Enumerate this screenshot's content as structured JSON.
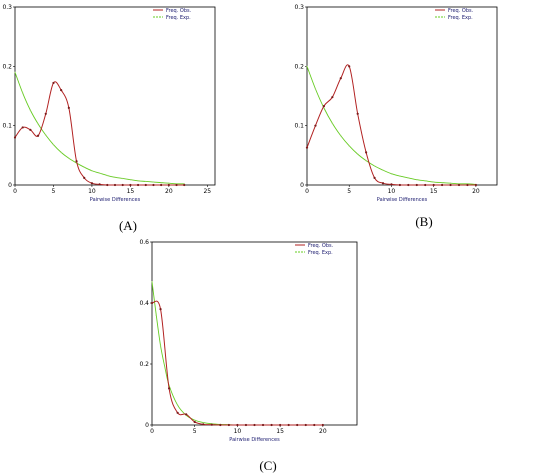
{
  "chart_data": [
    {
      "type": "line",
      "panel_label": "(A)",
      "xlabel": "Pairwise Differences",
      "ylabel": "",
      "xlim": [
        0,
        26
      ],
      "ylim": [
        0,
        0.3
      ],
      "x_ticks": [
        0,
        5,
        10,
        15,
        20,
        25
      ],
      "y_ticks": [
        0,
        0.1,
        0.2,
        0.3
      ],
      "legend": "top-right",
      "series": [
        {
          "name": "Freq. Obs.",
          "color": "#b22222",
          "x": [
            0,
            1,
            2,
            3,
            4,
            5,
            6,
            7,
            8,
            9,
            10,
            11,
            12,
            13,
            14,
            15,
            16,
            17,
            18,
            19,
            20,
            21,
            22
          ],
          "values": [
            0.08,
            0.097,
            0.093,
            0.083,
            0.12,
            0.172,
            0.16,
            0.13,
            0.04,
            0.012,
            0.003,
            0.001,
            0,
            0,
            0,
            0,
            0,
            0,
            0,
            0,
            0,
            0,
            0
          ]
        },
        {
          "name": "Freq. Exp.",
          "color": "#66cc22",
          "x": [
            0,
            1,
            2,
            3,
            4,
            5,
            6,
            7,
            8,
            9,
            10,
            11,
            12,
            13,
            14,
            15,
            16,
            17,
            18,
            19,
            20,
            21,
            22
          ],
          "values": [
            0.19,
            0.155,
            0.126,
            0.103,
            0.084,
            0.068,
            0.055,
            0.045,
            0.037,
            0.03,
            0.024,
            0.02,
            0.016,
            0.013,
            0.011,
            0.009,
            0.007,
            0.006,
            0.005,
            0.004,
            0.003,
            0.002,
            0.002
          ]
        }
      ]
    },
    {
      "type": "line",
      "panel_label": "(B)",
      "xlabel": "Pairwise Differences",
      "ylabel": "",
      "xlim": [
        0,
        22.5
      ],
      "ylim": [
        0,
        0.3
      ],
      "x_ticks": [
        0,
        5,
        10,
        15,
        20
      ],
      "y_ticks": [
        0,
        0.1,
        0.2,
        0.3
      ],
      "legend": "top-right",
      "series": [
        {
          "name": "Freq. Obs.",
          "color": "#b22222",
          "x": [
            0,
            1,
            2,
            3,
            4,
            5,
            6,
            7,
            8,
            9,
            10,
            11,
            12,
            13,
            14,
            15,
            16,
            17,
            18,
            19,
            20
          ],
          "values": [
            0.063,
            0.1,
            0.133,
            0.148,
            0.18,
            0.2,
            0.12,
            0.055,
            0.012,
            0.003,
            0.001,
            0,
            0,
            0,
            0,
            0,
            0,
            0,
            0,
            0,
            0
          ]
        },
        {
          "name": "Freq. Exp.",
          "color": "#66cc22",
          "x": [
            0,
            1,
            2,
            3,
            4,
            5,
            6,
            7,
            8,
            9,
            10,
            11,
            12,
            13,
            14,
            15,
            16,
            17,
            18,
            19,
            20
          ],
          "values": [
            0.2,
            0.162,
            0.13,
            0.104,
            0.083,
            0.066,
            0.052,
            0.041,
            0.032,
            0.025,
            0.019,
            0.015,
            0.012,
            0.009,
            0.007,
            0.005,
            0.004,
            0.003,
            0.002,
            0.002,
            0.001
          ]
        }
      ]
    },
    {
      "type": "line",
      "panel_label": "(C)",
      "xlabel": "Pairwise Differences",
      "ylabel": "",
      "xlim": [
        0,
        24
      ],
      "ylim": [
        0,
        0.6
      ],
      "x_ticks": [
        0,
        5,
        10,
        15,
        20
      ],
      "y_ticks": [
        0,
        0.2,
        0.4,
        0.6
      ],
      "legend": "top-right",
      "series": [
        {
          "name": "Freq. Obs.",
          "color": "#b22222",
          "x": [
            0,
            1,
            2,
            3,
            4,
            5,
            6,
            7,
            8,
            9,
            10,
            11,
            12,
            13,
            14,
            15,
            16,
            17,
            18,
            19,
            20
          ],
          "values": [
            0.4,
            0.38,
            0.12,
            0.04,
            0.035,
            0.01,
            0.002,
            0.001,
            0,
            0,
            0,
            0,
            0,
            0,
            0,
            0,
            0,
            0,
            0,
            0,
            0
          ]
        },
        {
          "name": "Freq. Exp.",
          "color": "#66cc22",
          "x": [
            0,
            0.5,
            1,
            1.5,
            2,
            3,
            4,
            5,
            6,
            7,
            8,
            9,
            10,
            11,
            12,
            13,
            14,
            15,
            16,
            17,
            18,
            19,
            20
          ],
          "values": [
            0.47,
            0.36,
            0.26,
            0.19,
            0.13,
            0.065,
            0.032,
            0.016,
            0.008,
            0.004,
            0.002,
            0.001,
            0,
            0,
            0,
            0,
            0,
            0,
            0,
            0,
            0,
            0,
            0
          ]
        }
      ]
    }
  ]
}
